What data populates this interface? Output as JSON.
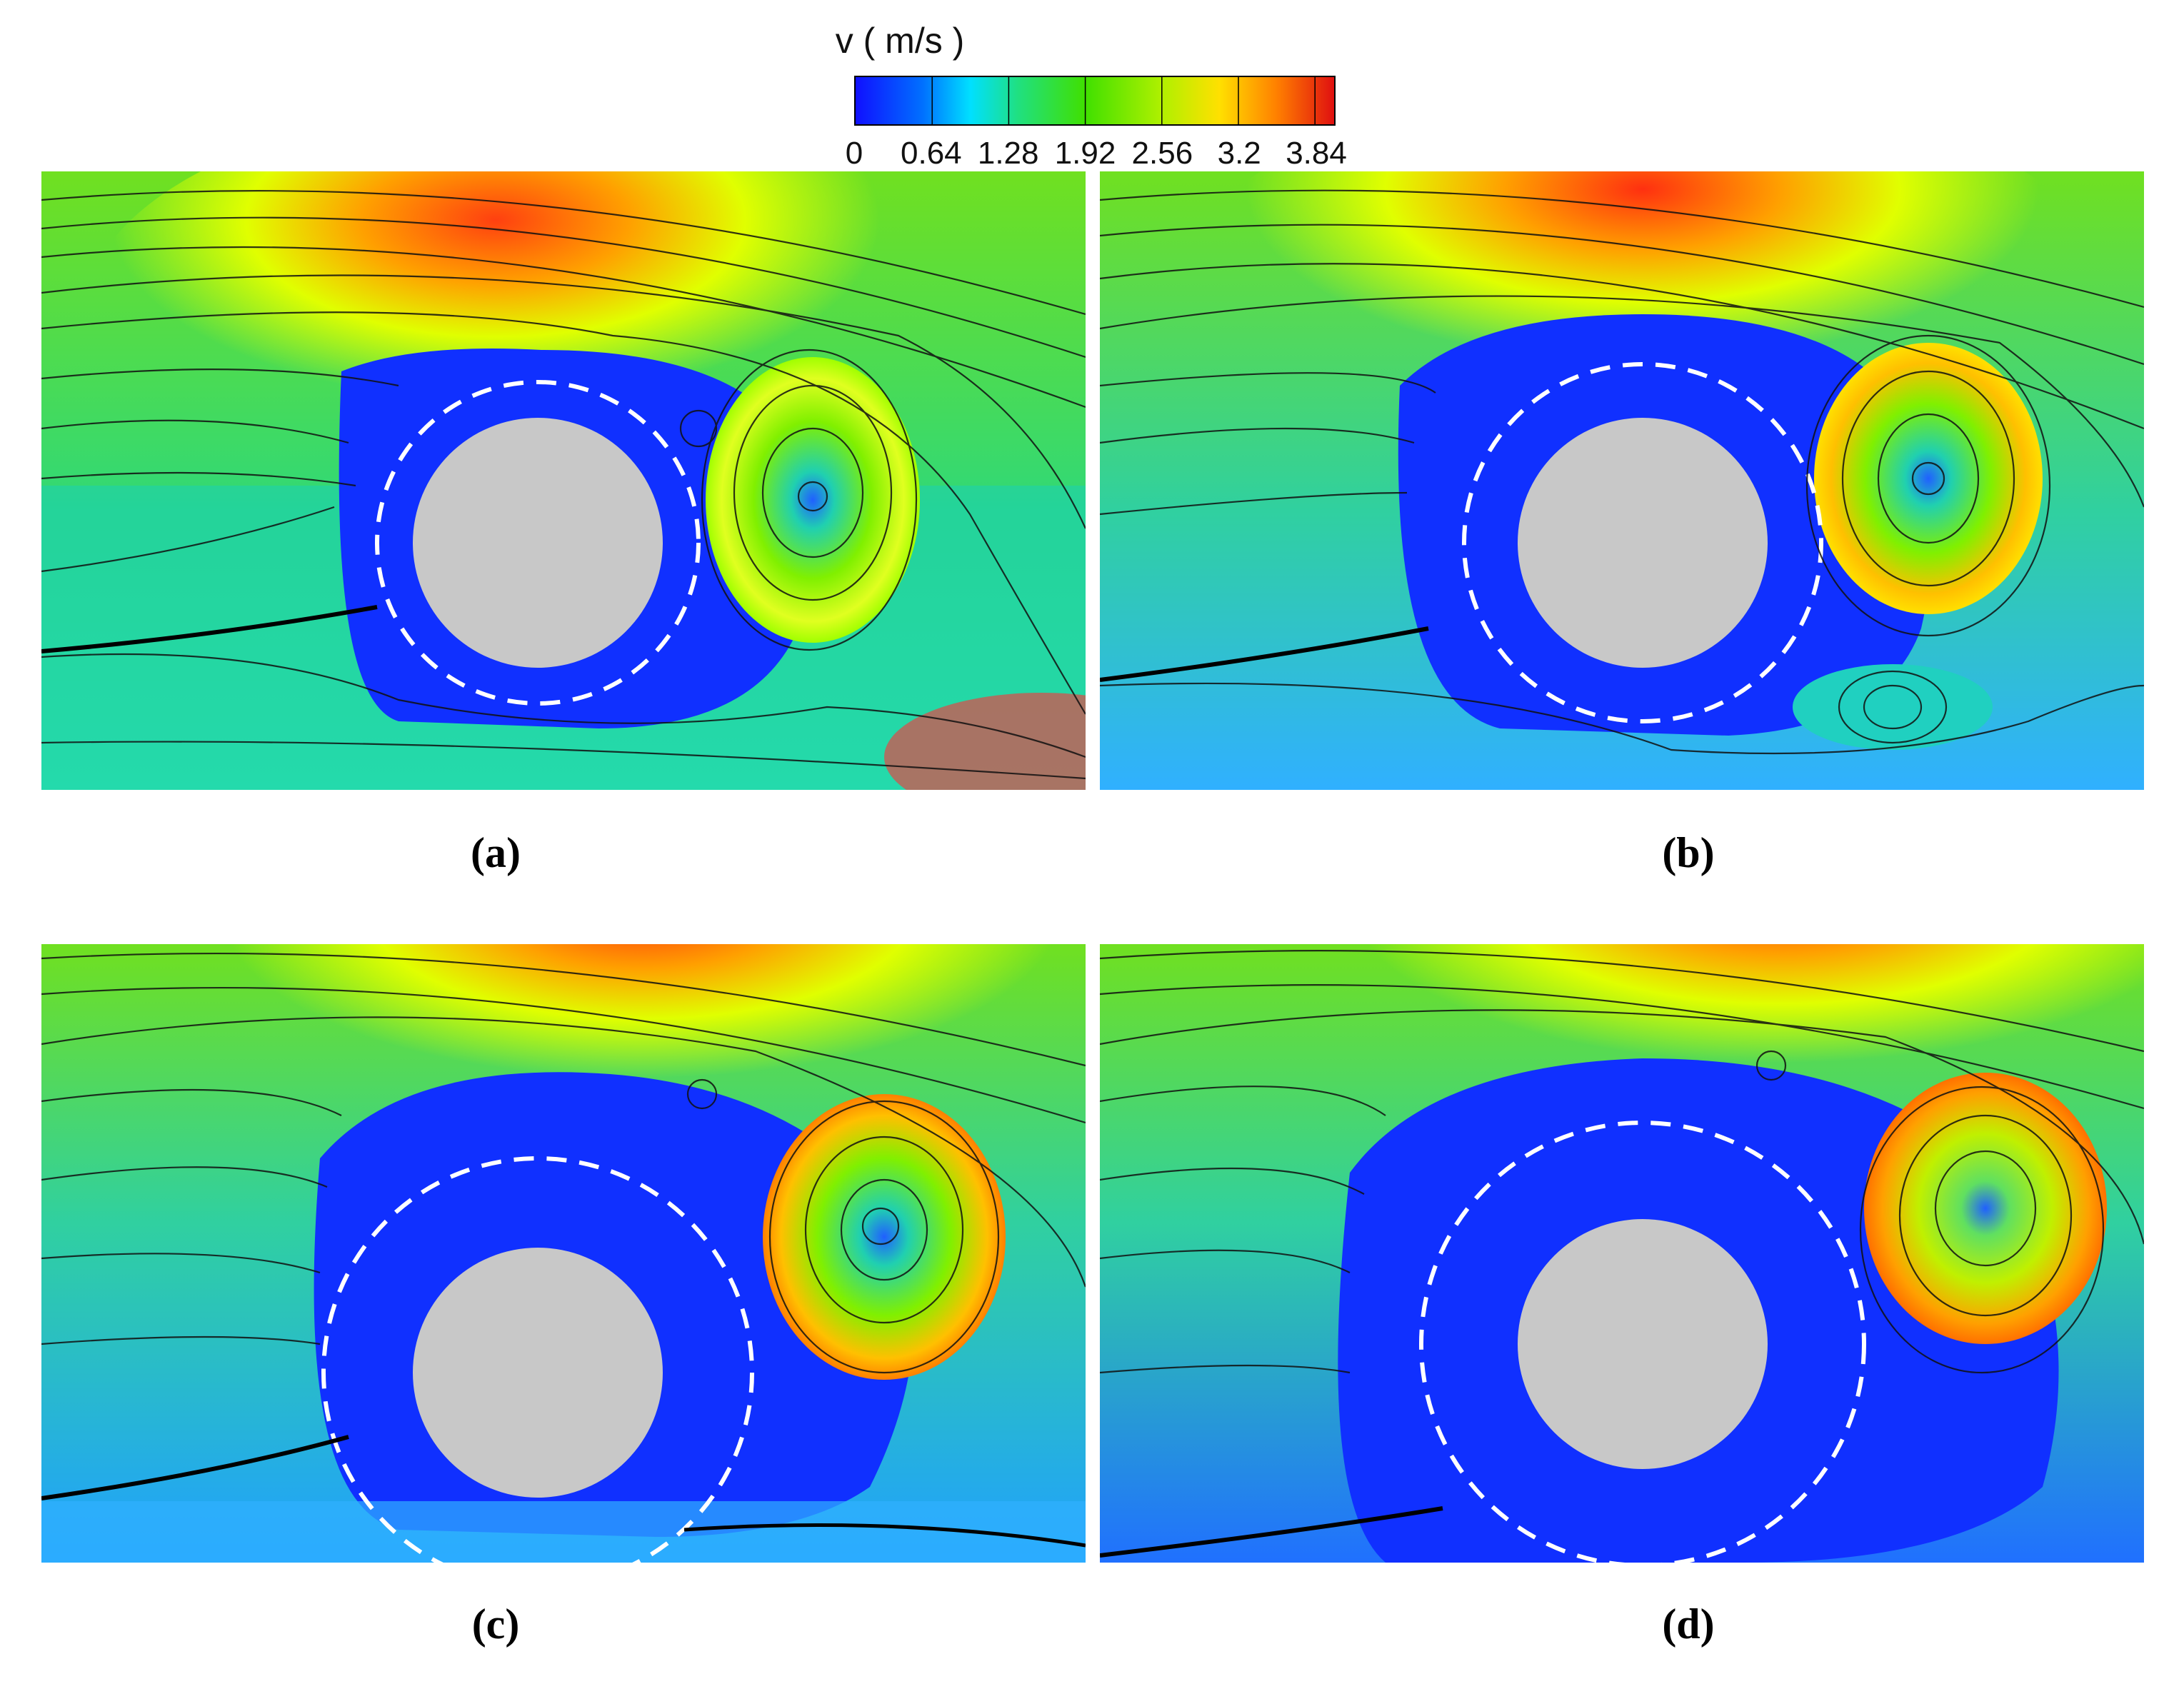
{
  "colorbar": {
    "title": "v ( m/s )",
    "ticks": [
      "0",
      "0.64",
      "1.28",
      "1.92",
      "2.56",
      "3.2",
      "3.84"
    ],
    "tick_values": [
      0,
      0.64,
      1.28,
      1.92,
      2.56,
      3.2,
      3.84
    ],
    "range": [
      0,
      4.0
    ],
    "colors": [
      "#1010ff",
      "#00b0ff",
      "#00f0e0",
      "#20e060",
      "#60ff00",
      "#f0ff00",
      "#ffb000",
      "#ff5000",
      "#e01010"
    ]
  },
  "panels": [
    {
      "label": "(a)"
    },
    {
      "label": "(b)"
    },
    {
      "label": "(c)"
    },
    {
      "label": "(d)"
    }
  ]
}
